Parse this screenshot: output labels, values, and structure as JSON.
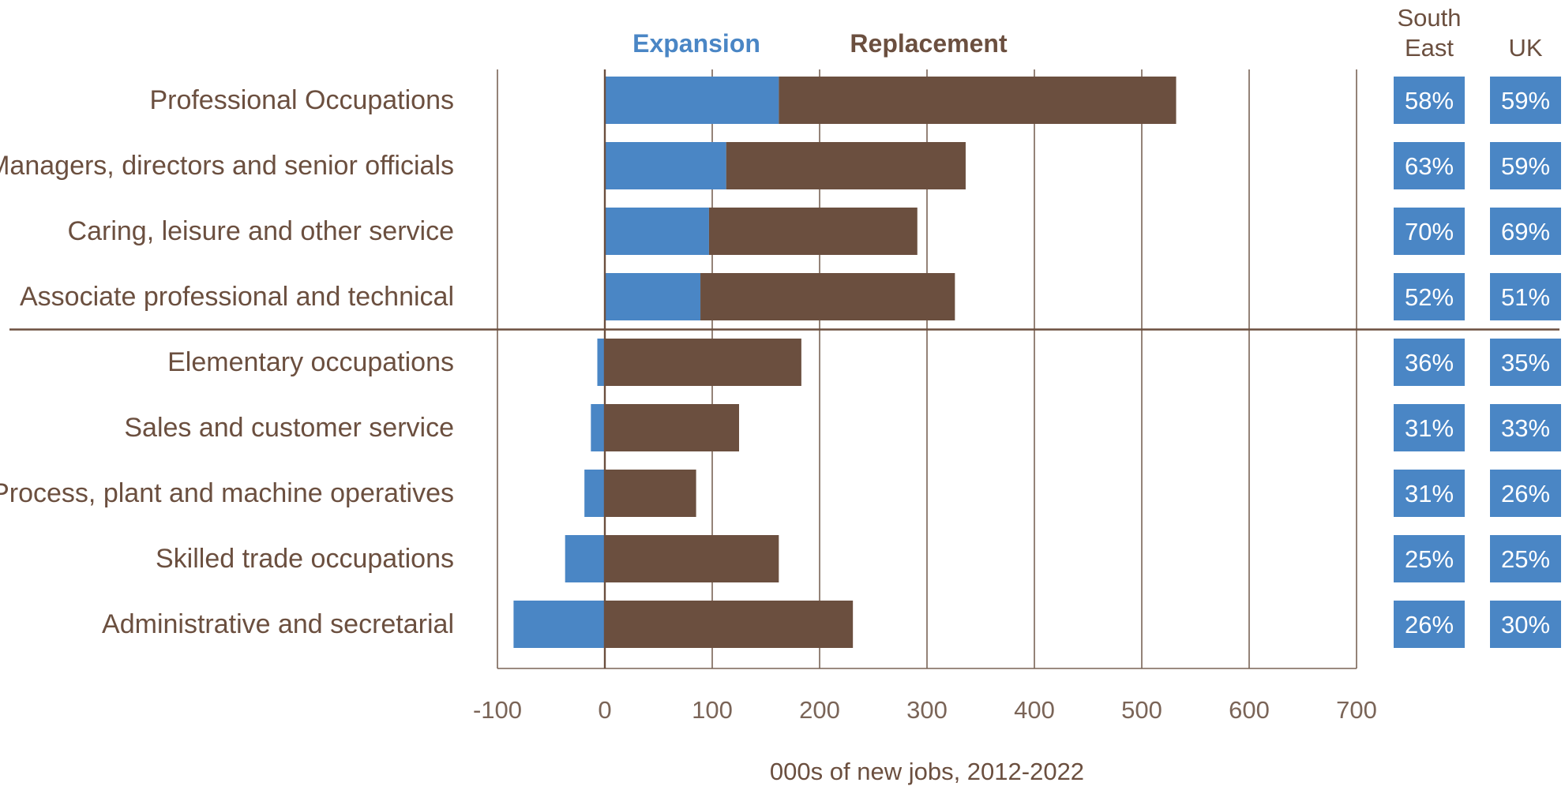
{
  "chart_data": {
    "type": "bar",
    "stacked": true,
    "orientation": "horizontal",
    "xlabel": "000s of new jobs, 2012-2022",
    "xlim": [
      -100,
      700
    ],
    "xticks": [
      "-100",
      "0",
      "100",
      "200",
      "300",
      "400",
      "500",
      "600",
      "700"
    ],
    "grid": "vertical",
    "legend_position": "top",
    "categories": [
      "Professional Occupations",
      "Managers, directors and senior officials",
      "Caring, leisure and other service",
      "Associate professional and technical",
      "Elementary occupations",
      "Sales and customer service",
      "Process, plant and machine operatives",
      "Skilled trade occupations",
      "Administrative and secretarial"
    ],
    "series": [
      {
        "name": "Expansion",
        "color": "#4a86c5",
        "values": [
          162,
          113,
          97,
          89,
          -7,
          -13,
          -19,
          -37,
          -85
        ]
      },
      {
        "name": "Replacement",
        "color": "#6b4f3f",
        "values": [
          370,
          223,
          194,
          237,
          183,
          125,
          85,
          162,
          231
        ]
      }
    ],
    "separator_after_index": 3,
    "share_columns": [
      {
        "header_line1": "South",
        "header_line2": "East",
        "values": [
          "58%",
          "63%",
          "70%",
          "52%",
          "36%",
          "31%",
          "31%",
          "25%",
          "26%"
        ]
      },
      {
        "header_line1": "",
        "header_line2": "UK",
        "values": [
          "59%",
          "59%",
          "69%",
          "51%",
          "35%",
          "33%",
          "26%",
          "25%",
          "30%"
        ]
      }
    ],
    "colors": {
      "text": "#6b4f3f",
      "axis": "#7a6457",
      "separator": "#6b4f3f",
      "box": "#4a86c5"
    }
  }
}
